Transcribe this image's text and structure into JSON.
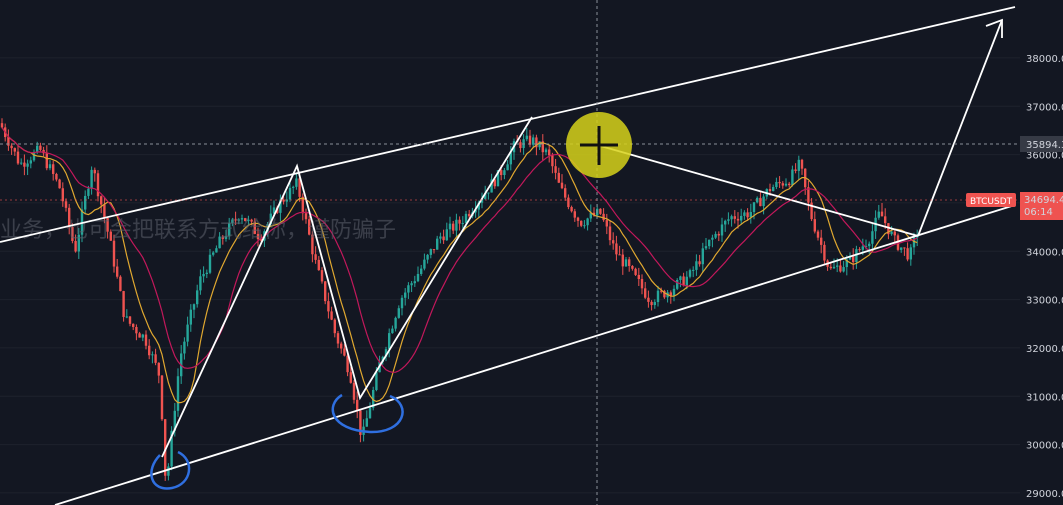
{
  "chart_data": {
    "type": "candlestick",
    "symbol": "BTCUSDT",
    "last_price": "34694.41",
    "countdown": "06:14",
    "crosshair_price": "35894.34",
    "y_ticks": [
      "38000.00",
      "37000.00",
      "36000.00",
      "35000.00",
      "34000.00",
      "33000.00",
      "32000.00",
      "31000.00",
      "30000.00",
      "29000.00"
    ],
    "ylim": [
      28750,
      38950
    ],
    "overlay_text": "业务，也可会把联系方式给你，谨防骗子",
    "colors": {
      "up": "#26a69a",
      "down": "#ef5350",
      "ma_fast": "#e0a830",
      "ma_slow": "#c2185b",
      "drawing": "#ffffff",
      "marker": "#2f6fe0",
      "cursor": "#d7d21a"
    },
    "price_path": [
      [
        0,
        36650
      ],
      [
        20,
        35800
      ],
      [
        40,
        36100
      ],
      [
        60,
        35300
      ],
      [
        75,
        34000
      ],
      [
        92,
        35800
      ],
      [
        110,
        34200
      ],
      [
        125,
        32600
      ],
      [
        145,
        32200
      ],
      [
        160,
        31400
      ],
      [
        166,
        29100
      ],
      [
        180,
        31800
      ],
      [
        200,
        33400
      ],
      [
        220,
        34200
      ],
      [
        240,
        34800
      ],
      [
        260,
        34300
      ],
      [
        280,
        35000
      ],
      [
        297,
        35400
      ],
      [
        315,
        33800
      ],
      [
        335,
        32300
      ],
      [
        350,
        31500
      ],
      [
        362,
        30100
      ],
      [
        380,
        31700
      ],
      [
        400,
        33000
      ],
      [
        420,
        33600
      ],
      [
        440,
        34300
      ],
      [
        460,
        34600
      ],
      [
        480,
        35100
      ],
      [
        500,
        35600
      ],
      [
        515,
        36200
      ],
      [
        532,
        36300
      ],
      [
        548,
        36000
      ],
      [
        560,
        35300
      ],
      [
        580,
        34600
      ],
      [
        600,
        34800
      ],
      [
        615,
        34000
      ],
      [
        630,
        33600
      ],
      [
        650,
        33000
      ],
      [
        670,
        33200
      ],
      [
        690,
        33500
      ],
      [
        710,
        34200
      ],
      [
        730,
        34700
      ],
      [
        750,
        34800
      ],
      [
        770,
        35300
      ],
      [
        790,
        35500
      ],
      [
        800,
        35800
      ],
      [
        810,
        34800
      ],
      [
        830,
        33600
      ],
      [
        850,
        33800
      ],
      [
        870,
        34300
      ],
      [
        880,
        34800
      ],
      [
        895,
        34200
      ],
      [
        910,
        33900
      ],
      [
        920,
        34600
      ]
    ]
  }
}
